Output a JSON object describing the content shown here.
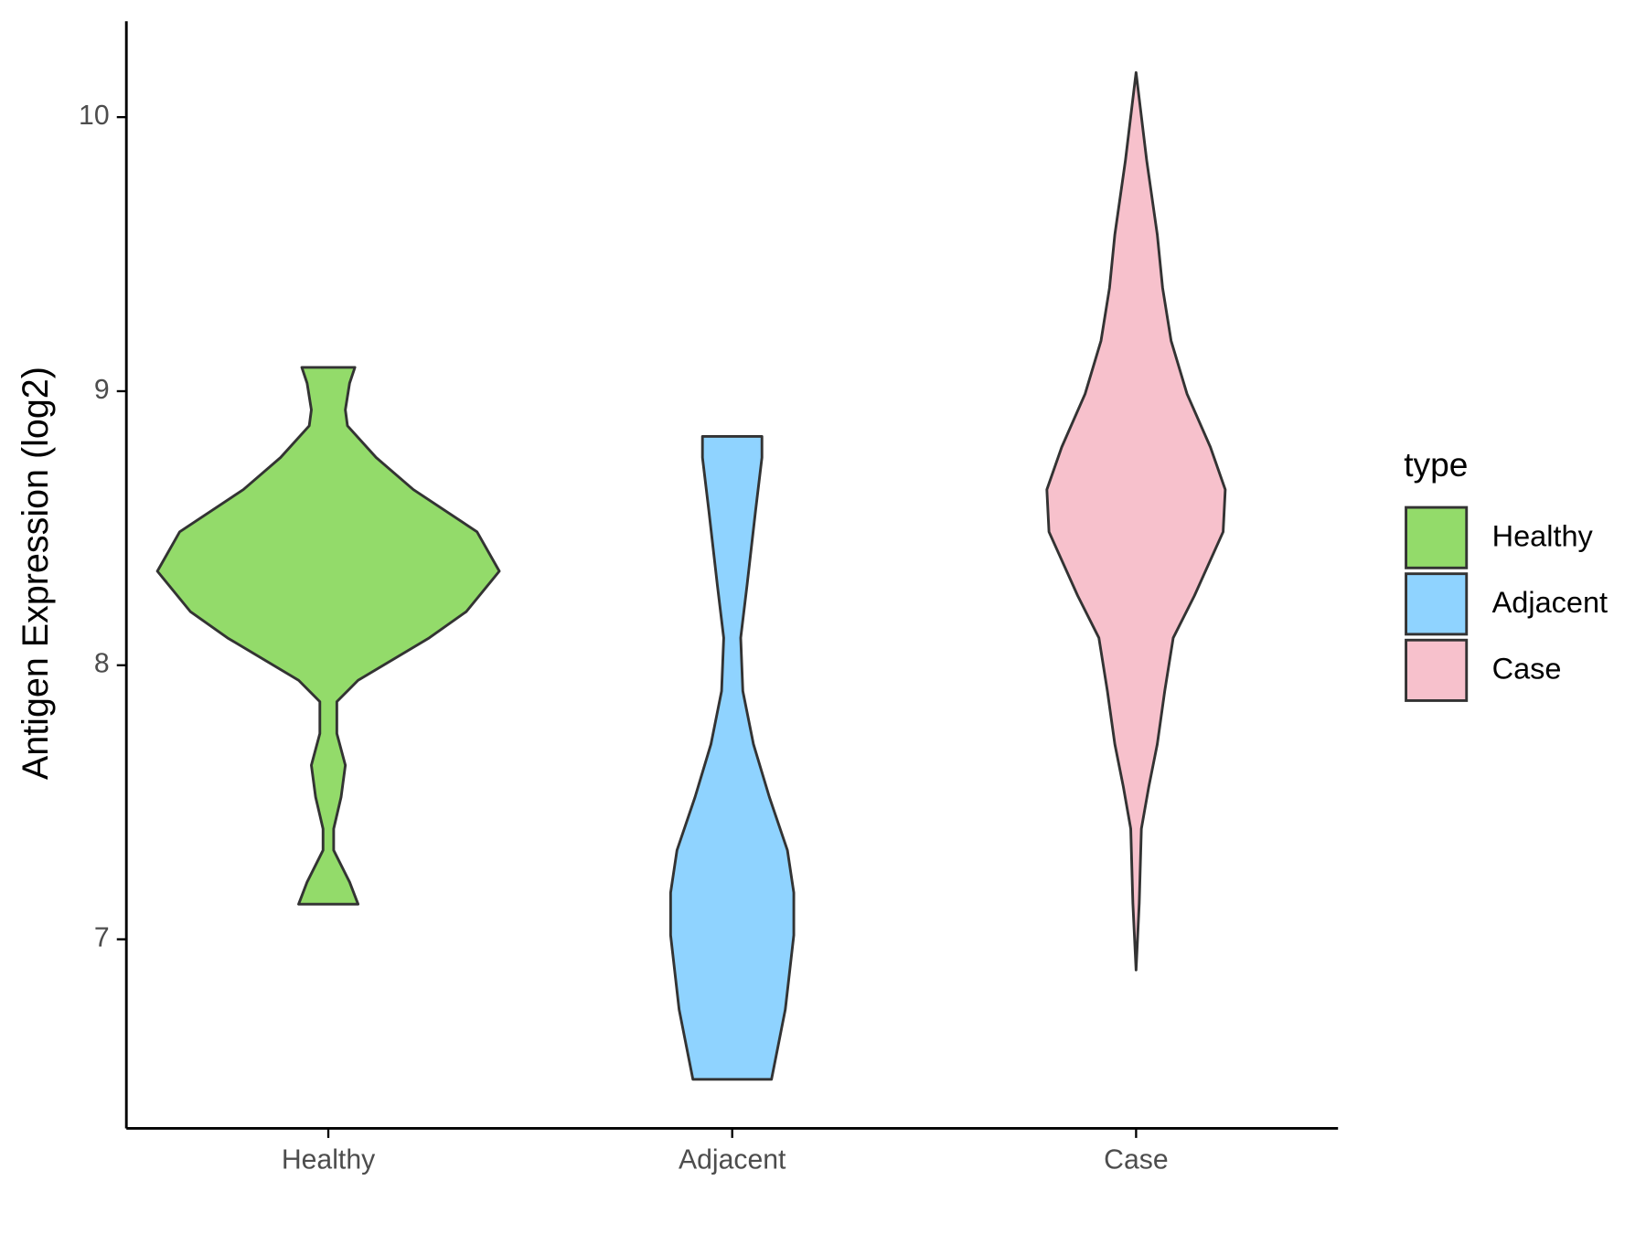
{
  "chart_data": {
    "type": "violin",
    "y_label": "Antigen Expression (log2)",
    "legend_title": "type",
    "categories": [
      "Healthy",
      "Adjacent",
      "Case"
    ],
    "ylim": [
      6.31,
      10.35
    ],
    "yticks": [
      7,
      8,
      9,
      10
    ],
    "grid": false,
    "legend": "right",
    "series": [
      {
        "name": "Healthy",
        "color": "#93db6a",
        "y": [
          7.128,
          7.209,
          7.325,
          7.403,
          7.519,
          7.635,
          7.751,
          7.867,
          7.945,
          8.1,
          8.196,
          8.343,
          8.487,
          8.641,
          8.758,
          8.874,
          8.932,
          9.029,
          9.087
        ],
        "width": [
          0.28,
          0.2,
          0.05,
          0.05,
          0.12,
          0.16,
          0.08,
          0.08,
          0.28,
          0.95,
          1.3,
          1.61,
          1.4,
          0.8,
          0.45,
          0.18,
          0.16,
          0.2,
          0.25
        ]
      },
      {
        "name": "Adjacent",
        "color": "#8fd3ff",
        "y": [
          6.489,
          6.744,
          7.015,
          7.17,
          7.325,
          7.519,
          7.712,
          7.906,
          8.1,
          8.293,
          8.564,
          8.758,
          8.835
        ],
        "width": [
          0.37,
          0.5,
          0.58,
          0.58,
          0.52,
          0.35,
          0.2,
          0.1,
          0.08,
          0.14,
          0.22,
          0.28,
          0.28
        ]
      },
      {
        "name": "Case",
        "color": "#f7c1cc",
        "y": [
          6.888,
          7.132,
          7.403,
          7.557,
          7.712,
          7.906,
          8.1,
          8.254,
          8.487,
          8.641,
          8.796,
          8.99,
          9.184,
          9.377,
          9.571,
          9.842,
          10.035,
          10.163
        ],
        "width": [
          0,
          0.03,
          0.05,
          0.12,
          0.2,
          0.27,
          0.35,
          0.55,
          0.82,
          0.84,
          0.7,
          0.48,
          0.33,
          0.25,
          0.2,
          0.1,
          0.04,
          0
        ]
      }
    ]
  }
}
